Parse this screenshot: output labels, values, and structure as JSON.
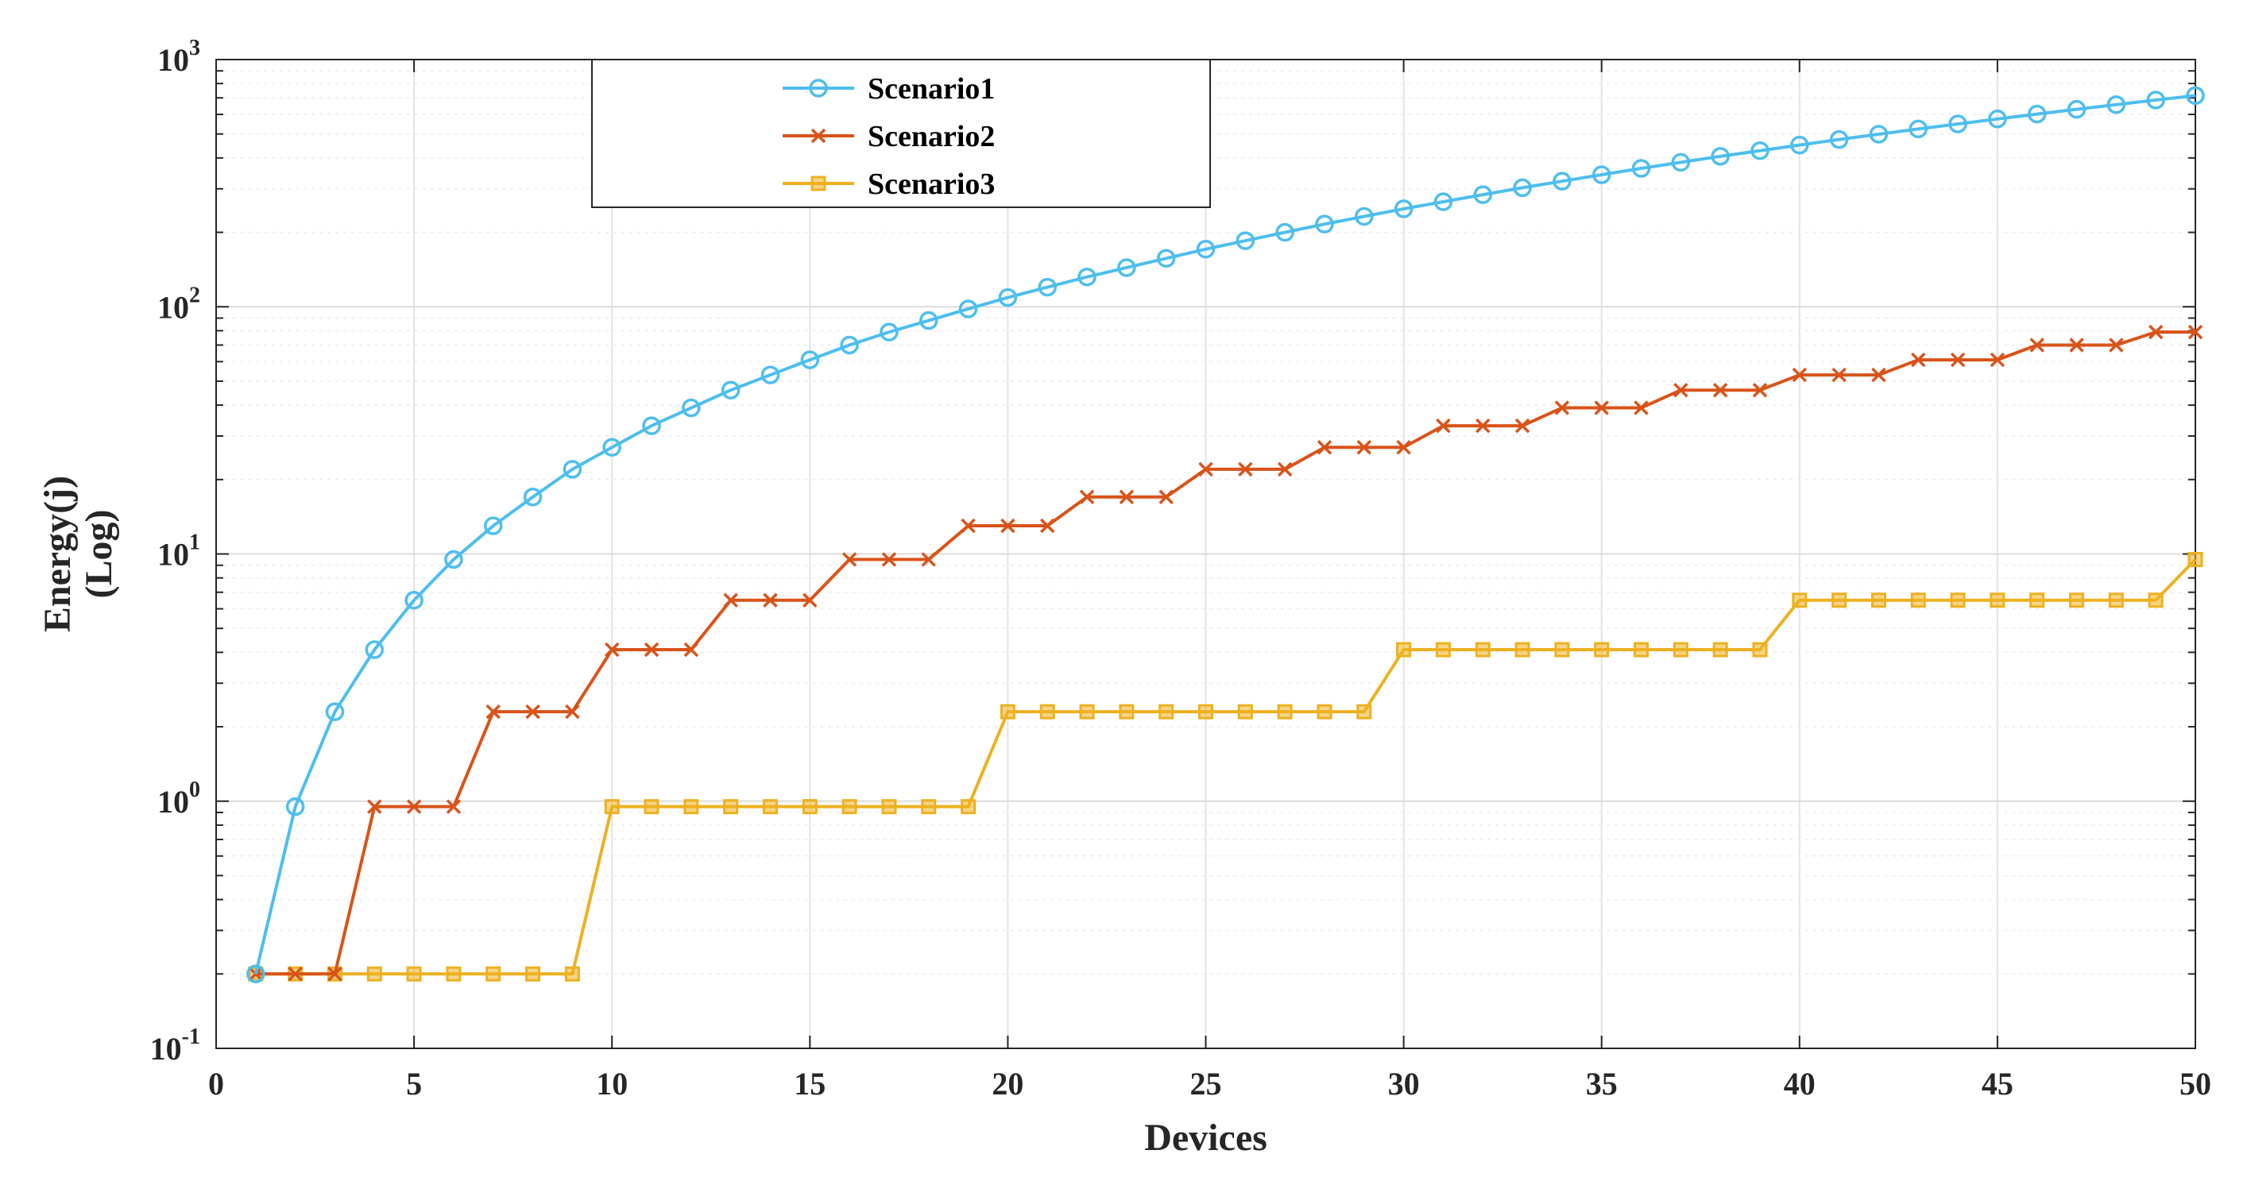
{
  "chart_data": {
    "type": "line",
    "title": "",
    "xlabel": "Devices",
    "ylabel": [
      "Energy(j)",
      "(Log)"
    ],
    "y_scale": "log",
    "xlim": [
      0,
      50
    ],
    "ylim": [
      0.1,
      1000
    ],
    "x_ticks": [
      0,
      5,
      10,
      15,
      20,
      25,
      30,
      35,
      40,
      45,
      50
    ],
    "y_ticks": [
      {
        "value": 0.1,
        "base": "10",
        "exp": "-1"
      },
      {
        "value": 1,
        "base": "10",
        "exp": "0"
      },
      {
        "value": 10,
        "base": "10",
        "exp": "1"
      },
      {
        "value": 100,
        "base": "10",
        "exp": "2"
      },
      {
        "value": 1000,
        "base": "10",
        "exp": "3"
      }
    ],
    "grid": true,
    "legend_position": "top-left",
    "x": [
      1,
      2,
      3,
      4,
      5,
      6,
      7,
      8,
      9,
      10,
      11,
      12,
      13,
      14,
      15,
      16,
      17,
      18,
      19,
      20,
      21,
      22,
      23,
      24,
      25,
      26,
      27,
      28,
      29,
      30,
      31,
      32,
      33,
      34,
      35,
      36,
      37,
      38,
      39,
      40,
      41,
      42,
      43,
      44,
      45,
      46,
      47,
      48,
      49,
      50
    ],
    "series": [
      {
        "name": "Scenario1",
        "color": "#4DBEEE",
        "marker": "circle",
        "values": [
          0.2,
          0.95,
          2.3,
          4.1,
          6.5,
          9.5,
          13,
          17,
          22,
          27,
          33,
          39,
          46,
          53,
          61,
          70,
          79,
          88,
          98,
          109,
          120,
          132,
          144,
          157,
          171,
          185,
          200,
          216,
          232,
          249,
          266,
          284,
          303,
          322,
          342,
          363,
          384,
          406,
          428,
          451,
          475,
          499,
          524,
          549,
          575,
          602,
          629,
          657,
          686,
          715
        ]
      },
      {
        "name": "Scenario2",
        "color": "#D95319",
        "marker": "x",
        "values": [
          0.2,
          0.2,
          0.2,
          0.95,
          0.95,
          0.95,
          2.3,
          2.3,
          2.3,
          4.1,
          4.1,
          4.1,
          6.5,
          6.5,
          6.5,
          9.5,
          9.5,
          9.5,
          13,
          13,
          13,
          17,
          17,
          17,
          22,
          22,
          22,
          27,
          27,
          27,
          33,
          33,
          33,
          39,
          39,
          39,
          46,
          46,
          46,
          53,
          53,
          53,
          61,
          61,
          61,
          70,
          70,
          70,
          79,
          79
        ]
      },
      {
        "name": "Scenario3",
        "color": "#EDB120",
        "marker": "square",
        "values": [
          0.2,
          0.2,
          0.2,
          0.2,
          0.2,
          0.2,
          0.2,
          0.2,
          0.2,
          0.95,
          0.95,
          0.95,
          0.95,
          0.95,
          0.95,
          0.95,
          0.95,
          0.95,
          0.95,
          2.3,
          2.3,
          2.3,
          2.3,
          2.3,
          2.3,
          2.3,
          2.3,
          2.3,
          2.3,
          4.1,
          4.1,
          4.1,
          4.1,
          4.1,
          4.1,
          4.1,
          4.1,
          4.1,
          4.1,
          6.5,
          6.5,
          6.5,
          6.5,
          6.5,
          6.5,
          6.5,
          6.5,
          6.5,
          6.5,
          9.5
        ]
      }
    ]
  }
}
